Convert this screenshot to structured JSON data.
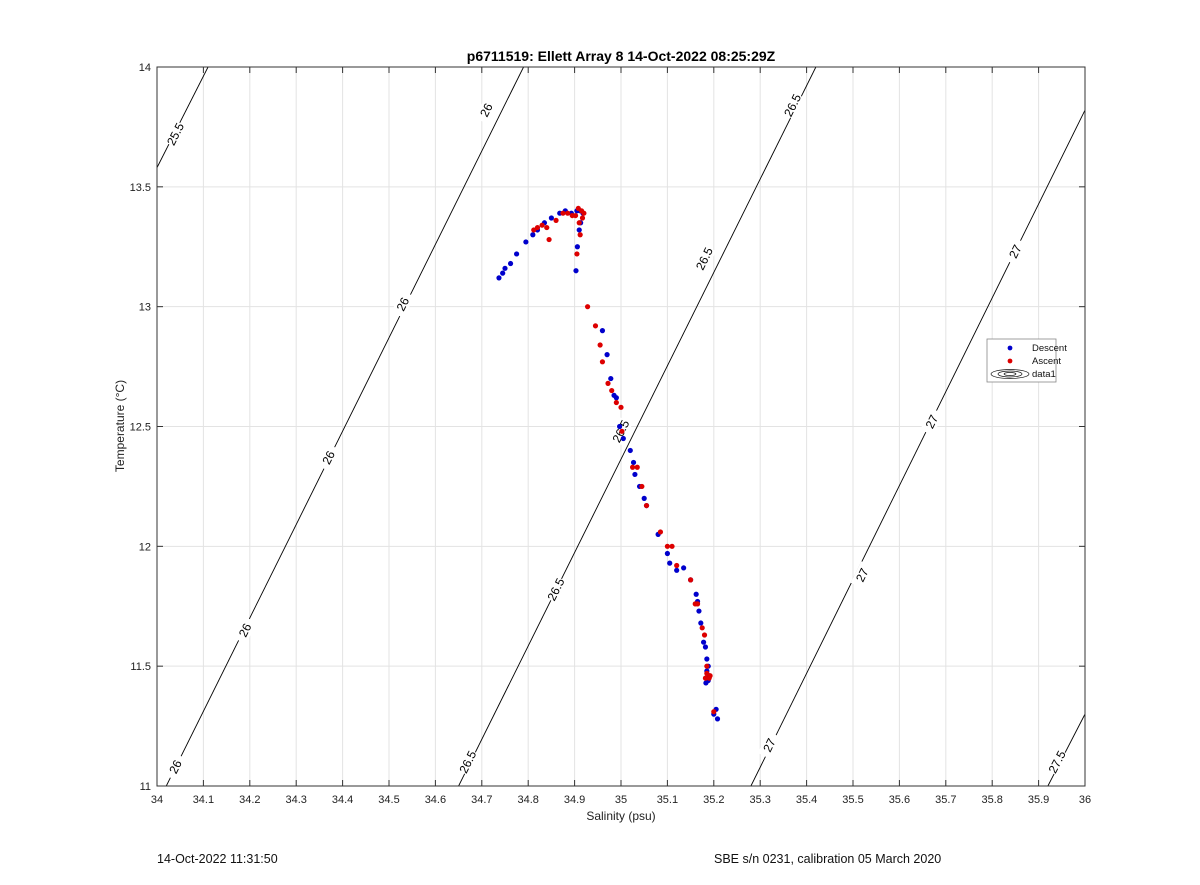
{
  "chart_data": {
    "type": "scatter",
    "title": "p6711519: Ellett Array 8 14-Oct-2022 08:25:29Z",
    "xlabel": "Salinity (psu)",
    "ylabel": "Temperature (°C)",
    "xlim": [
      34,
      36
    ],
    "ylim": [
      11,
      14
    ],
    "xticks": [
      "34",
      "34.1",
      "34.2",
      "34.3",
      "34.4",
      "34.5",
      "34.6",
      "34.7",
      "34.8",
      "34.9",
      "35",
      "35.1",
      "35.2",
      "35.3",
      "35.4",
      "35.5",
      "35.6",
      "35.7",
      "35.8",
      "35.9",
      "36"
    ],
    "yticks": [
      "11",
      "11.5",
      "12",
      "12.5",
      "13",
      "13.5",
      "14"
    ],
    "grid": true,
    "legend_position": "right",
    "legend": [
      "Descent",
      "Ascent",
      "data1"
    ],
    "series": [
      {
        "name": "Descent",
        "color": "#0000cc",
        "points": [
          [
            34.737,
            13.12
          ],
          [
            34.745,
            13.14
          ],
          [
            34.75,
            13.16
          ],
          [
            34.762,
            13.18
          ],
          [
            34.775,
            13.22
          ],
          [
            34.795,
            13.27
          ],
          [
            34.81,
            13.3
          ],
          [
            34.82,
            13.32
          ],
          [
            34.835,
            13.35
          ],
          [
            34.85,
            13.37
          ],
          [
            34.868,
            13.39
          ],
          [
            34.88,
            13.4
          ],
          [
            34.893,
            13.39
          ],
          [
            34.905,
            13.4
          ],
          [
            34.912,
            13.4
          ],
          [
            34.918,
            13.39
          ],
          [
            34.913,
            13.35
          ],
          [
            34.91,
            13.32
          ],
          [
            34.906,
            13.25
          ],
          [
            34.903,
            13.15
          ],
          [
            34.96,
            12.9
          ],
          [
            34.97,
            12.8
          ],
          [
            34.978,
            12.7
          ],
          [
            34.985,
            12.63
          ],
          [
            34.99,
            12.62
          ],
          [
            34.997,
            12.5
          ],
          [
            35.005,
            12.45
          ],
          [
            35.02,
            12.4
          ],
          [
            35.027,
            12.35
          ],
          [
            35.03,
            12.3
          ],
          [
            35.04,
            12.25
          ],
          [
            35.05,
            12.2
          ],
          [
            35.055,
            12.17
          ],
          [
            35.08,
            12.05
          ],
          [
            35.1,
            11.97
          ],
          [
            35.105,
            11.93
          ],
          [
            35.12,
            11.9
          ],
          [
            35.135,
            11.91
          ],
          [
            35.15,
            11.86
          ],
          [
            35.162,
            11.8
          ],
          [
            35.165,
            11.77
          ],
          [
            35.168,
            11.73
          ],
          [
            35.172,
            11.68
          ],
          [
            35.178,
            11.6
          ],
          [
            35.182,
            11.58
          ],
          [
            35.185,
            11.53
          ],
          [
            35.188,
            11.5
          ],
          [
            35.185,
            11.48
          ],
          [
            35.19,
            11.46
          ],
          [
            35.183,
            11.43
          ],
          [
            35.188,
            11.44
          ],
          [
            35.2,
            11.3
          ],
          [
            35.205,
            11.32
          ],
          [
            35.208,
            11.28
          ]
        ]
      },
      {
        "name": "Ascent",
        "color": "#dd0000",
        "points": [
          [
            34.812,
            13.32
          ],
          [
            34.82,
            13.33
          ],
          [
            34.83,
            13.34
          ],
          [
            34.84,
            13.33
          ],
          [
            34.845,
            13.28
          ],
          [
            34.86,
            13.36
          ],
          [
            34.875,
            13.39
          ],
          [
            34.885,
            13.39
          ],
          [
            34.895,
            13.38
          ],
          [
            34.902,
            13.38
          ],
          [
            34.908,
            13.41
          ],
          [
            34.915,
            13.4
          ],
          [
            34.92,
            13.39
          ],
          [
            34.917,
            13.37
          ],
          [
            34.91,
            13.35
          ],
          [
            34.912,
            13.3
          ],
          [
            34.905,
            13.22
          ],
          [
            34.928,
            13.0
          ],
          [
            34.945,
            12.92
          ],
          [
            34.955,
            12.84
          ],
          [
            34.96,
            12.77
          ],
          [
            34.972,
            12.68
          ],
          [
            34.98,
            12.65
          ],
          [
            34.99,
            12.6
          ],
          [
            35.0,
            12.58
          ],
          [
            35.002,
            12.48
          ],
          [
            35.025,
            12.33
          ],
          [
            35.035,
            12.33
          ],
          [
            35.045,
            12.25
          ],
          [
            35.055,
            12.17
          ],
          [
            35.085,
            12.06
          ],
          [
            35.1,
            12.0
          ],
          [
            35.11,
            12.0
          ],
          [
            35.12,
            11.92
          ],
          [
            35.15,
            11.86
          ],
          [
            35.16,
            11.76
          ],
          [
            35.165,
            11.76
          ],
          [
            35.175,
            11.66
          ],
          [
            35.18,
            11.63
          ],
          [
            35.185,
            11.5
          ],
          [
            35.182,
            11.45
          ],
          [
            35.185,
            11.47
          ],
          [
            35.19,
            11.45
          ],
          [
            35.192,
            11.46
          ],
          [
            35.2,
            11.31
          ]
        ]
      }
    ],
    "isopycnals": [
      {
        "label": "25.5",
        "points": [
          [
            34,
            13.58
          ],
          [
            34.11,
            14.0
          ]
        ],
        "label_at": [
          [
            34.04,
            13.72
          ]
        ]
      },
      {
        "label": "26",
        "points": [
          [
            34.02,
            11.0
          ],
          [
            34.79,
            14.0
          ]
        ],
        "label_at": [
          [
            34.04,
            11.08
          ],
          [
            34.19,
            11.65
          ],
          [
            34.37,
            12.37
          ],
          [
            34.53,
            13.01
          ],
          [
            34.71,
            13.82
          ]
        ]
      },
      {
        "label": "26.5",
        "points": [
          [
            34.65,
            11.0
          ],
          [
            35.42,
            14.0
          ]
        ],
        "label_at": [
          [
            34.67,
            11.1
          ],
          [
            34.86,
            11.82
          ],
          [
            35.0,
            12.48
          ],
          [
            35.18,
            13.2
          ],
          [
            35.37,
            13.84
          ]
        ]
      },
      {
        "label": "27",
        "points": [
          [
            35.28,
            11.0
          ],
          [
            36.0,
            13.82
          ]
        ],
        "label_at": [
          [
            35.32,
            11.17
          ],
          [
            35.52,
            11.88
          ],
          [
            35.67,
            12.52
          ],
          [
            35.85,
            13.23
          ]
        ]
      },
      {
        "label": "27.5",
        "points": [
          [
            35.92,
            11.0
          ],
          [
            36.0,
            11.3
          ]
        ],
        "label_at": [
          [
            35.94,
            11.1
          ]
        ]
      }
    ]
  },
  "footer": {
    "left": "14-Oct-2022 11:31:50",
    "right": "SBE s/n 0231, calibration 05 March 2020"
  }
}
